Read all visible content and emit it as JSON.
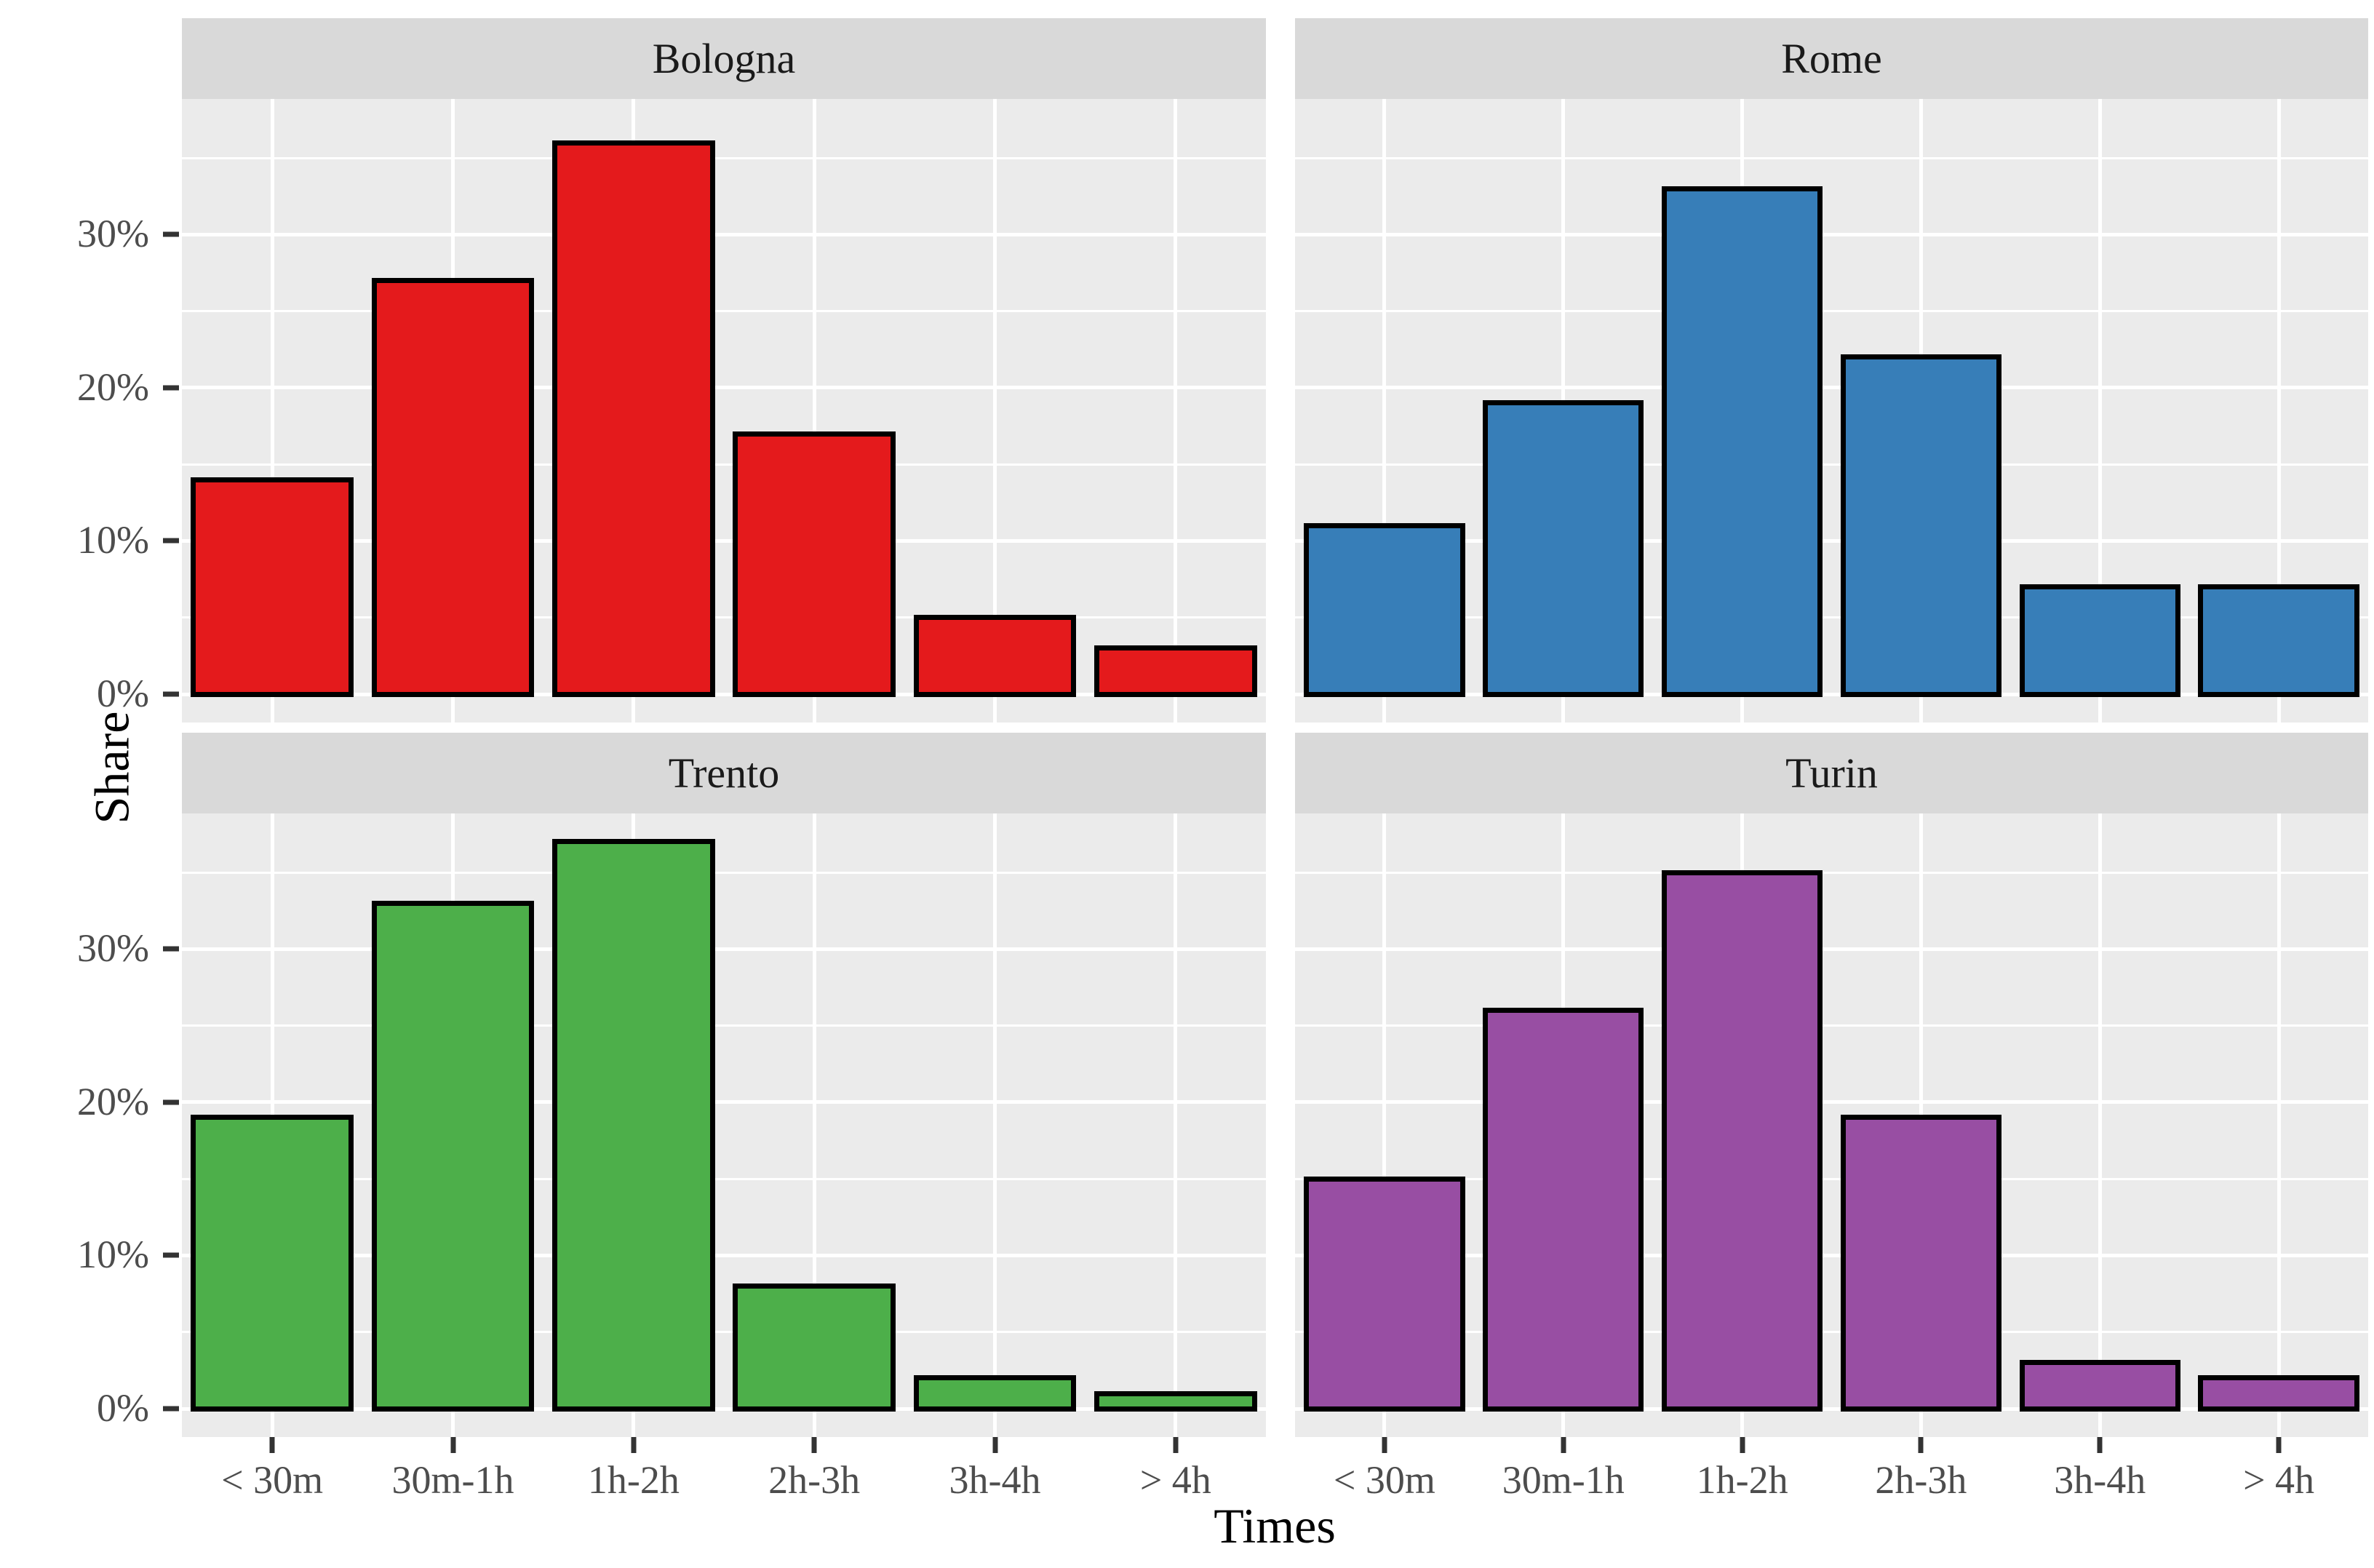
{
  "figure": {
    "x_axis_title": "Times",
    "y_axis_title": "Share",
    "y_tick_labels": [
      "0%",
      "10%",
      "20%",
      "30%"
    ],
    "x_tick_labels": [
      "< 30m",
      "30m-1h",
      "1h-2h",
      "2h-3h",
      "3h-4h",
      "> 4h"
    ]
  },
  "chart_data": {
    "type": "bar",
    "faceted": true,
    "facet_layout": [
      [
        "Bologna",
        "Rome"
      ],
      [
        "Trento",
        "Turin"
      ]
    ],
    "title": "",
    "xlabel": "Times",
    "ylabel": "Share",
    "categories": [
      "< 30m",
      "30m-1h",
      "1h-2h",
      "2h-3h",
      "3h-4h",
      "> 4h"
    ],
    "y_unit": "percent",
    "ylim": [
      -1.85,
      38.85
    ],
    "y_major_ticks": [
      0,
      10,
      20,
      30
    ],
    "y_minor_ticks": [
      5,
      15,
      25,
      35
    ],
    "legend_position": "none",
    "grid": "white major and minor lines on gray panel",
    "facets": [
      {
        "name": "Bologna",
        "color": "#e41a1c",
        "values": [
          14,
          27,
          36,
          17,
          5,
          3
        ]
      },
      {
        "name": "Rome",
        "color": "#377eb8",
        "values": [
          11,
          19,
          33,
          22,
          7,
          7
        ]
      },
      {
        "name": "Trento",
        "color": "#4daf4a",
        "values": [
          19,
          33,
          37,
          8,
          2,
          1
        ]
      },
      {
        "name": "Turin",
        "color": "#984ea3",
        "values": [
          15,
          26,
          35,
          19,
          3,
          2
        ]
      }
    ]
  },
  "style": {
    "panel_background": "#ebebeb",
    "strip_background": "#d9d9d9",
    "page_background": "#ffffff",
    "grid_color": "#ffffff",
    "bar_outline_color": "#000000",
    "tick_mark_color": "#333333",
    "tick_label_color": "#4d4d4d",
    "axis_title_color": "#000000",
    "strip_text_color": "#1a1a1a"
  }
}
